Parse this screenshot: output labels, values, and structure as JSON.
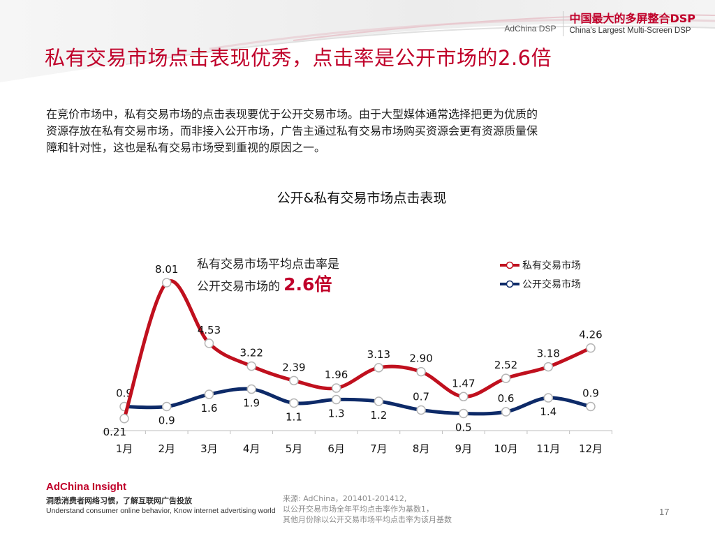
{
  "header": {
    "brand_small": "AdChina DSP",
    "brand_cn": "中国最大的多屏整合DSP",
    "brand_en": "China's Largest Multi-Screen DSP"
  },
  "title": "私有交易市场点击表现优秀，点击率是公开市场的2.6倍",
  "intro_lines": [
    "在竞价市场中，私有交易市场的点击表现要优于公开交易市场。由于大型媒体通常选择把更为优质的",
    "资源存放在私有交易市场，而非接入公开市场，广告主通过私有交易市场购买资源会更有资源质量保",
    "障和针对性，这也是私有交易市场受到重视的原因之一。"
  ],
  "chart_data": {
    "type": "line",
    "title": "公开&私有交易市场点击表现",
    "categories": [
      "1月",
      "2月",
      "3月",
      "4月",
      "5月",
      "6月",
      "7月",
      "8月",
      "9月",
      "10月",
      "11月",
      "12月"
    ],
    "series": [
      {
        "name": "私有交易市场",
        "color": "#c0101e",
        "values": [
          0.21,
          8.01,
          4.53,
          3.22,
          2.39,
          1.96,
          3.13,
          2.9,
          1.47,
          2.52,
          3.18,
          4.26
        ],
        "labels": [
          "0.21",
          "8.01",
          "4.53",
          "3.22",
          "2.39",
          "1.96",
          "3.13",
          "2.90",
          "1.47",
          "2.52",
          "3.18",
          "4.26"
        ]
      },
      {
        "name": "公开交易市场",
        "color": "#0d2a68",
        "values": [
          0.9,
          0.9,
          1.6,
          1.9,
          1.1,
          1.3,
          1.2,
          0.7,
          0.5,
          0.6,
          1.4,
          0.9
        ],
        "labels": [
          "0.9",
          "0.9",
          "1.6",
          "1.9",
          "1.1",
          "1.3",
          "1.2",
          "0.7",
          "0.5",
          "0.6",
          "1.4",
          "0.9"
        ]
      }
    ],
    "annotation": {
      "line1": "私有交易市场平均点击率是",
      "line2_prefix": "公开交易市场的",
      "line2_value": "2.6倍"
    },
    "legend": "top-right",
    "grid": false
  },
  "footer": {
    "brand": "AdChina Insight",
    "slogan_cn": "洞悉消费者网络习惯，了解互联网广告投放",
    "slogan_en": "Understand consumer online behavior, Know internet advertising world",
    "source_lines": [
      "来源: AdChina，201401-201412,",
      "以公开交易市场全年平均点击率作为基数1，",
      "其他月份除以公开交易市场平均点击率为该月基数"
    ],
    "page_number": "17"
  }
}
